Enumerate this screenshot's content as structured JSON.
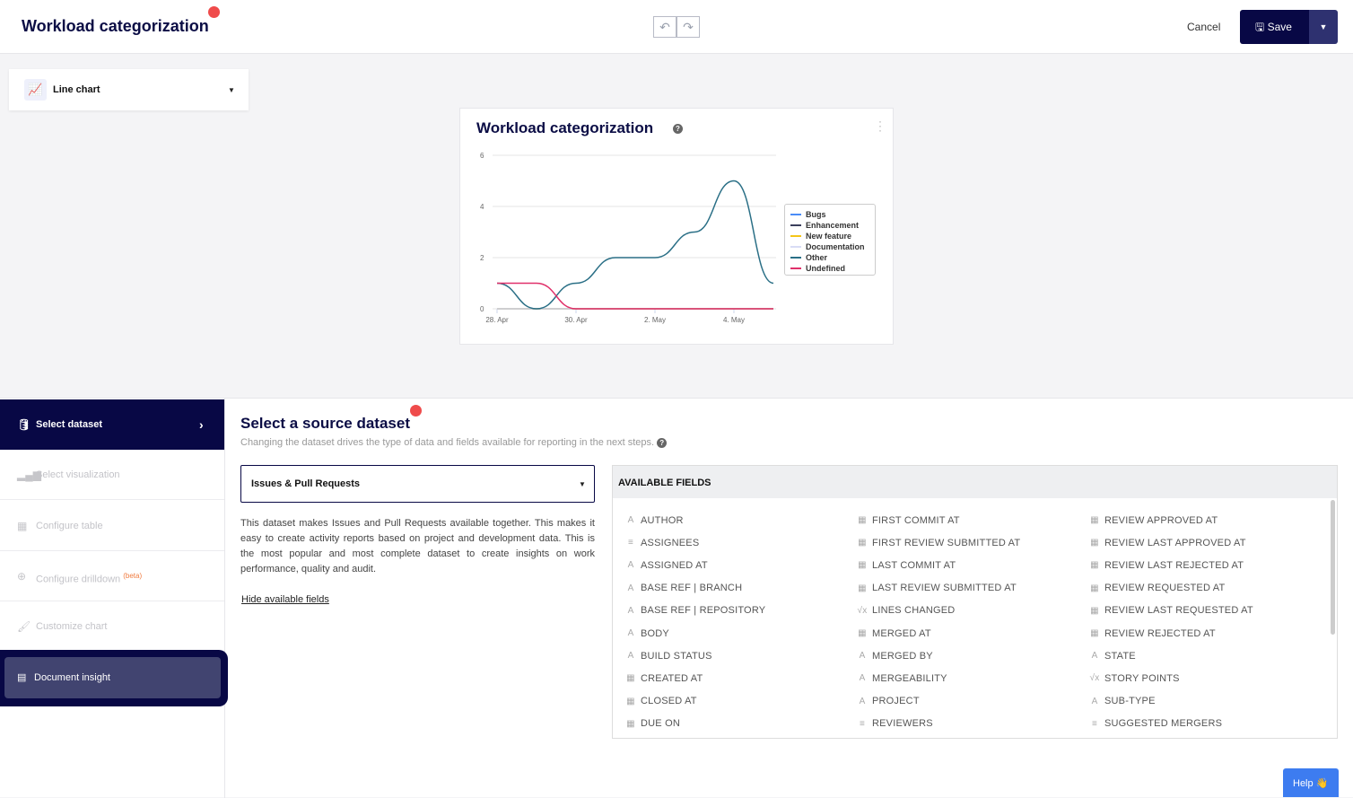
{
  "header": {
    "title": "Workload categorization",
    "cancel": "Cancel",
    "save": "Save"
  },
  "chart_type": {
    "label": "Line chart"
  },
  "card": {
    "title": "Workload categorization"
  },
  "chart_data": {
    "type": "line",
    "x": [
      "28. Apr",
      "29. Apr",
      "30. Apr",
      "1. May",
      "2. May",
      "3. May",
      "4. May",
      "5. May"
    ],
    "xticks": [
      "28. Apr",
      "30. Apr",
      "2. May",
      "4. May"
    ],
    "ylim": [
      0,
      6
    ],
    "yticks": [
      "0",
      "2",
      "4",
      "6"
    ],
    "grid": true,
    "legend": "right",
    "series": [
      {
        "name": "Bugs",
        "color": "#4a8cf7",
        "values": [
          0,
          0,
          0,
          0,
          0,
          0,
          0,
          0
        ]
      },
      {
        "name": "Enhancement",
        "color": "#3b3f5c",
        "values": [
          0,
          0,
          0,
          0,
          0,
          0,
          0,
          0
        ]
      },
      {
        "name": "New feature",
        "color": "#f5c518",
        "values": [
          0,
          0,
          0,
          0,
          0,
          0,
          0,
          0
        ]
      },
      {
        "name": "Documentation",
        "color": "#d8dcf5",
        "values": [
          0,
          0,
          0,
          0,
          0,
          0,
          0,
          0
        ]
      },
      {
        "name": "Other",
        "color": "#2a6f86",
        "values": [
          1,
          0,
          1,
          2,
          2,
          3,
          5,
          1
        ]
      },
      {
        "name": "Undefined",
        "color": "#e0306a",
        "values": [
          1,
          1,
          0,
          0,
          0,
          0,
          0,
          0
        ]
      }
    ]
  },
  "steps": [
    {
      "label": "Select dataset",
      "icon": "database-icon"
    },
    {
      "label": "Select visualization",
      "icon": "bar-chart-icon"
    },
    {
      "label": "Configure table",
      "icon": "table-icon"
    },
    {
      "label": "Configure drilldown",
      "badge": "(beta)",
      "icon": "crosshair-icon"
    },
    {
      "label": "Customize chart",
      "icon": "paint-roller-icon"
    }
  ],
  "document_insight": "Document insight",
  "main": {
    "title": "Select a source dataset",
    "subtitle": "Changing the dataset drives the type of data and fields available for reporting in the next steps.",
    "dataset": "Issues & Pull Requests",
    "description": "This dataset makes Issues and Pull Requests available together. This makes it easy to create activity reports based on project and development data. This is the most popular and most complete dataset to create insights on work performance, quality and audit.",
    "hide_fields": "Hide available fields",
    "fields_header": "AVAILABLE FIELDS",
    "fields": [
      [
        [
          "A",
          "AUTHOR"
        ],
        [
          "≡",
          "ASSIGNEES"
        ],
        [
          "A",
          "ASSIGNED AT"
        ],
        [
          "A",
          "BASE REF | BRANCH"
        ],
        [
          "A",
          "BASE REF | REPOSITORY"
        ],
        [
          "A",
          "BODY"
        ],
        [
          "A",
          "BUILD STATUS"
        ],
        [
          "▦",
          "CREATED AT"
        ],
        [
          "▦",
          "CLOSED AT"
        ],
        [
          "▦",
          "DUE ON"
        ]
      ],
      [
        [
          "▦",
          "FIRST COMMIT AT"
        ],
        [
          "▦",
          "FIRST REVIEW SUBMITTED AT"
        ],
        [
          "▦",
          "LAST COMMIT AT"
        ],
        [
          "▦",
          "LAST REVIEW SUBMITTED AT"
        ],
        [
          "√x",
          "LINES CHANGED"
        ],
        [
          "▦",
          "MERGED AT"
        ],
        [
          "A",
          "MERGED BY"
        ],
        [
          "A",
          "MERGEABILITY"
        ],
        [
          "A",
          "PROJECT"
        ],
        [
          "≡",
          "REVIEWERS"
        ]
      ],
      [
        [
          "▦",
          "REVIEW APPROVED AT"
        ],
        [
          "▦",
          "REVIEW LAST APPROVED AT"
        ],
        [
          "▦",
          "REVIEW LAST REJECTED AT"
        ],
        [
          "▦",
          "REVIEW REQUESTED AT"
        ],
        [
          "▦",
          "REVIEW LAST REQUESTED AT"
        ],
        [
          "▦",
          "REVIEW REJECTED AT"
        ],
        [
          "A",
          "STATE"
        ],
        [
          "√x",
          "STORY POINTS"
        ],
        [
          "A",
          "SUB-TYPE"
        ],
        [
          "≡",
          "SUGGESTED MERGERS"
        ]
      ]
    ]
  },
  "help": "Help 👋"
}
